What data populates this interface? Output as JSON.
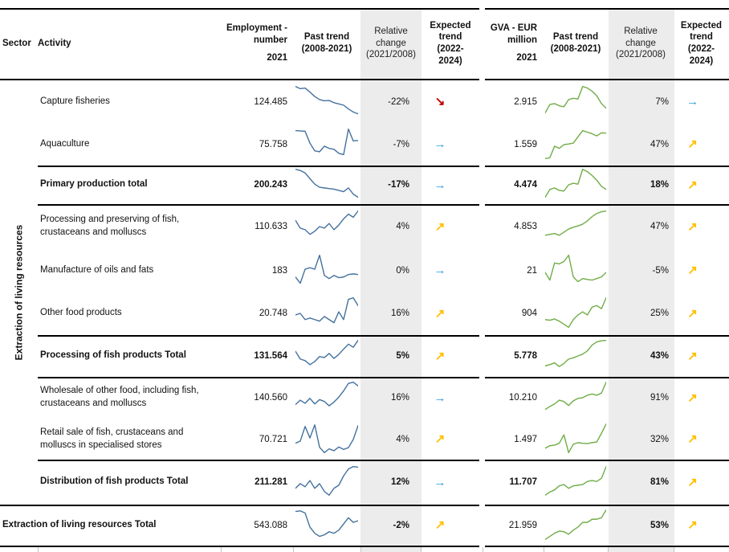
{
  "colors": {
    "employment_line": "#44719F",
    "gva_line": "#70AD47",
    "stripe": "#ECECEC",
    "line_black": "#000000"
  },
  "icons": {
    "up": {
      "name": "trend-up-arrow",
      "glyph": "↗",
      "color": "#FFC000"
    },
    "flat": {
      "name": "trend-flat-arrow",
      "glyph": "→",
      "color": "#2B9CD8"
    },
    "down": {
      "name": "trend-down-arrow",
      "glyph": "↘",
      "color": "#C00000"
    }
  },
  "chart_data": {
    "type": "table",
    "sector_label": "Extraction of living resources",
    "trend_period": "2008-2021",
    "columns": {
      "sector": "Sector",
      "activity": "Activity",
      "employment_value": "Employment -\nnumber",
      "employment_year": "2021",
      "employment_trend": "Past trend\n(2008-2021)",
      "employment_change": "Relative\nchange\n(2021/2008)",
      "employment_expected": "Expected\ntrend\n(2022-\n2024)",
      "gva_value": "GVA - EUR\nmillion",
      "gva_year": "2021",
      "gva_trend": "Past trend\n(2008-2021)",
      "gva_change": "Relative\nchange\n(2021/2008)",
      "gva_expected": "Expected\ntrend\n(2022-\n2024)"
    },
    "rows": [
      {
        "activity": "Capture fisheries",
        "style": "normal",
        "employment_2021": "124.485",
        "employment_trend": [
          100,
          93,
          95,
          82,
          68,
          58,
          54,
          55,
          48,
          44,
          40,
          28,
          18,
          12
        ],
        "employment_change": "-22%",
        "employment_expected": "down",
        "gva_2021": "2.915",
        "gva_trend": [
          15,
          42,
          45,
          38,
          35,
          58,
          62,
          60,
          100,
          95,
          85,
          70,
          45,
          30
        ],
        "gva_change": "7%",
        "gva_expected": "flat"
      },
      {
        "activity": "Aquaculture",
        "style": "normal",
        "employment_2021": "75.758",
        "employment_trend": [
          95,
          94,
          93,
          55,
          30,
          27,
          45,
          38,
          35,
          22,
          18,
          100,
          62,
          63
        ],
        "employment_change": "-7%",
        "employment_expected": "flat",
        "gva_2021": "1.559",
        "gva_trend": [
          5,
          8,
          45,
          38,
          50,
          52,
          55,
          75,
          95,
          90,
          85,
          78,
          88,
          87
        ],
        "gva_change": "47%",
        "gva_expected": "up"
      },
      {
        "activity": "Primary production total",
        "style": "total",
        "employment_2021": "200.243",
        "employment_trend": [
          100,
          96,
          88,
          70,
          52,
          42,
          40,
          38,
          36,
          32,
          28,
          40,
          20,
          10
        ],
        "employment_change": "-17%",
        "employment_expected": "flat",
        "gva_2021": "4.474",
        "gva_trend": [
          10,
          35,
          40,
          32,
          30,
          50,
          55,
          52,
          100,
          92,
          80,
          65,
          45,
          35
        ],
        "gva_change": "18%",
        "gva_expected": "up"
      },
      {
        "activity": "Processing and preserving of fish, crustaceans and molluscs",
        "style": "normal",
        "employment_2021": "110.633",
        "employment_trend": [
          70,
          45,
          40,
          25,
          35,
          50,
          45,
          60,
          40,
          55,
          75,
          90,
          80,
          100
        ],
        "employment_change": "4%",
        "employment_expected": "up",
        "gva_2021": "4.853",
        "gva_trend": [
          22,
          25,
          28,
          22,
          32,
          42,
          48,
          52,
          58,
          68,
          82,
          92,
          98,
          100
        ],
        "gva_change": "47%",
        "gva_expected": "up"
      },
      {
        "activity": "Manufacture of oils and fats",
        "style": "normal",
        "employment_2021": "183",
        "employment_trend": [
          30,
          10,
          55,
          60,
          55,
          100,
          35,
          25,
          35,
          28,
          30,
          38,
          40,
          38
        ],
        "employment_change": "0%",
        "employment_expected": "flat",
        "gva_2021": "21",
        "gva_trend": [
          45,
          20,
          75,
          72,
          80,
          100,
          30,
          15,
          25,
          22,
          20,
          25,
          30,
          45
        ],
        "gva_change": "-5%",
        "gva_expected": "up"
      },
      {
        "activity": "Other food products",
        "style": "normal",
        "employment_2021": "20.748",
        "employment_trend": [
          45,
          50,
          30,
          35,
          30,
          25,
          40,
          30,
          20,
          55,
          30,
          95,
          100,
          75
        ],
        "employment_change": "16%",
        "employment_expected": "up",
        "gva_2021": "904",
        "gva_trend": [
          30,
          28,
          32,
          25,
          15,
          5,
          30,
          45,
          55,
          45,
          70,
          75,
          65,
          100
        ],
        "gva_change": "25%",
        "gva_expected": "up"
      },
      {
        "activity": "Processing of fish products Total",
        "style": "total",
        "employment_2021": "131.564",
        "employment_trend": [
          65,
          40,
          35,
          22,
          32,
          48,
          45,
          58,
          42,
          55,
          72,
          88,
          78,
          100
        ],
        "employment_change": "5%",
        "employment_expected": "up",
        "gva_2021": "5.778",
        "gva_trend": [
          18,
          22,
          28,
          16,
          26,
          40,
          44,
          50,
          56,
          66,
          85,
          95,
          99,
          100
        ],
        "gva_change": "43%",
        "gva_expected": "up"
      },
      {
        "activity": "Wholesale of other food, including fish, crustaceans and molluscs",
        "style": "normal",
        "employment_2021": "140.560",
        "employment_trend": [
          28,
          42,
          32,
          48,
          30,
          44,
          38,
          24,
          36,
          52,
          72,
          96,
          100,
          88
        ],
        "employment_change": "16%",
        "employment_expected": "flat",
        "gva_2021": "10.210",
        "gva_trend": [
          12,
          22,
          30,
          42,
          38,
          25,
          40,
          48,
          50,
          58,
          62,
          58,
          65,
          100
        ],
        "gva_change": "91%",
        "gva_expected": "up"
      },
      {
        "activity": "Retail sale of fish, crustaceans and molluscs in specialised stores",
        "style": "normal",
        "employment_2021": "70.721",
        "employment_trend": [
          38,
          45,
          92,
          55,
          97,
          25,
          8,
          20,
          14,
          26,
          18,
          24,
          50,
          95
        ],
        "employment_change": "4%",
        "employment_expected": "up",
        "gva_2021": "1.497",
        "gva_trend": [
          22,
          30,
          32,
          38,
          65,
          8,
          35,
          40,
          38,
          37,
          40,
          42,
          70,
          100
        ],
        "gva_change": "32%",
        "gva_expected": "up"
      },
      {
        "activity": "Distribution of fish products Total",
        "style": "total",
        "employment_2021": "211.281",
        "employment_trend": [
          30,
          45,
          35,
          55,
          30,
          45,
          20,
          8,
          30,
          40,
          70,
          92,
          100,
          98
        ],
        "employment_change": "12%",
        "employment_expected": "flat",
        "gva_2021": "11.707",
        "gva_trend": [
          8,
          18,
          25,
          38,
          42,
          30,
          38,
          40,
          42,
          52,
          55,
          52,
          62,
          100
        ],
        "gva_change": "81%",
        "gva_expected": "up"
      },
      {
        "activity": "Extraction of living resources Total",
        "style": "grand",
        "employment_2021": "543.088",
        "employment_trend": [
          95,
          97,
          90,
          45,
          25,
          15,
          20,
          30,
          25,
          35,
          55,
          75,
          60,
          65
        ],
        "employment_change": "-2%",
        "employment_expected": "up",
        "gva_2021": "21.959",
        "gva_trend": [
          5,
          15,
          25,
          32,
          30,
          22,
          35,
          45,
          60,
          60,
          70,
          70,
          75,
          100
        ],
        "gva_change": "53%",
        "gva_expected": "up"
      }
    ]
  }
}
